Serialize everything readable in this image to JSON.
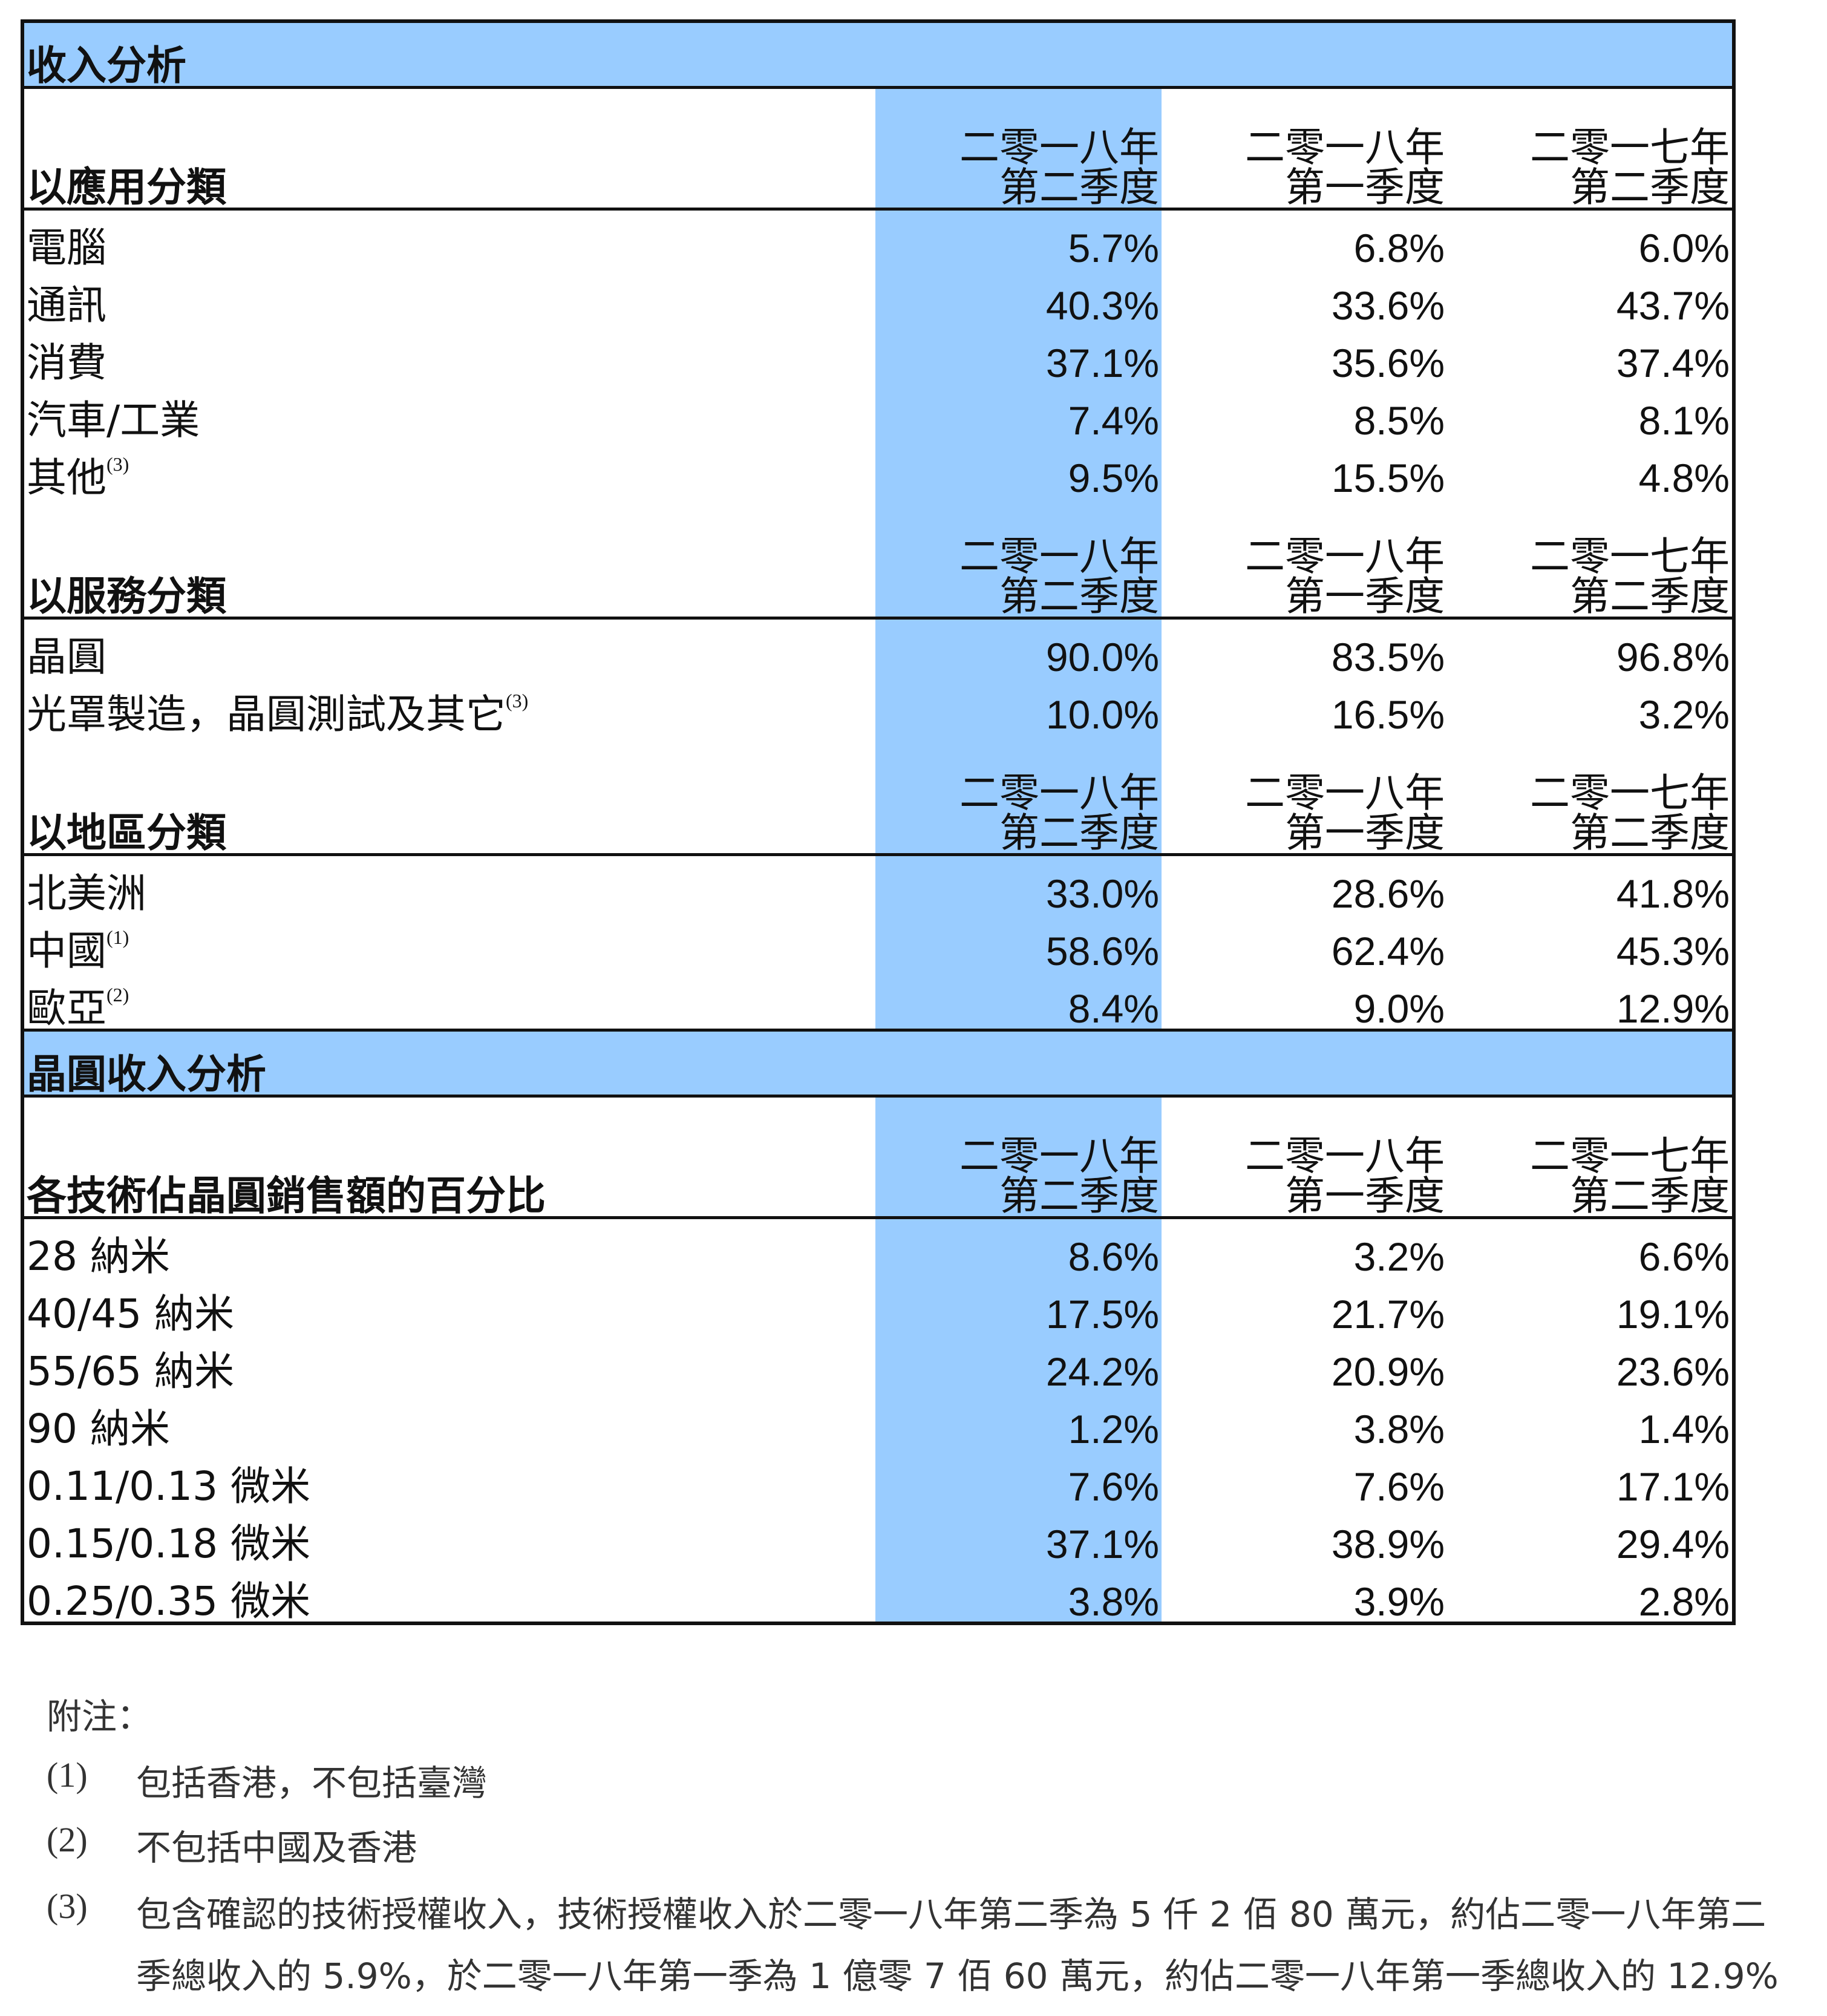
{
  "colors": {
    "highlight": "#99ccff",
    "border": "#111111"
  },
  "sections": [
    {
      "band": "收入分析",
      "header": {
        "label": "以應用分類",
        "cols": [
          [
            "二零一八年",
            "第二季度"
          ],
          [
            "二零一八年",
            "第一季度"
          ],
          [
            "二零一七年",
            "第二季度"
          ]
        ]
      },
      "rows": [
        {
          "label": "電腦",
          "note": "",
          "values": [
            "5.7%",
            "6.8%",
            "6.0%"
          ]
        },
        {
          "label": "通訊",
          "note": "",
          "values": [
            "40.3%",
            "33.6%",
            "43.7%"
          ]
        },
        {
          "label": "消費",
          "note": "",
          "values": [
            "37.1%",
            "35.6%",
            "37.4%"
          ]
        },
        {
          "label": "汽車/工業",
          "note": "",
          "values": [
            "7.4%",
            "8.5%",
            "8.1%"
          ]
        },
        {
          "label": "其他",
          "note": "(3)",
          "values": [
            "9.5%",
            "15.5%",
            "4.8%"
          ]
        }
      ]
    },
    {
      "band": "",
      "header": {
        "label": "以服務分類",
        "cols": [
          [
            "二零一八年",
            "第二季度"
          ],
          [
            "二零一八年",
            "第一季度"
          ],
          [
            "二零一七年",
            "第二季度"
          ]
        ]
      },
      "rows": [
        {
          "label": "晶圓",
          "note": "",
          "values": [
            "90.0%",
            "83.5%",
            "96.8%"
          ]
        },
        {
          "label": "光罩製造，晶圓測試及其它",
          "note": "(3)",
          "values": [
            "10.0%",
            "16.5%",
            "3.2%"
          ]
        }
      ]
    },
    {
      "band": "",
      "header": {
        "label": "以地區分類",
        "cols": [
          [
            "二零一八年",
            "第二季度"
          ],
          [
            "二零一八年",
            "第一季度"
          ],
          [
            "二零一七年",
            "第二季度"
          ]
        ]
      },
      "rows": [
        {
          "label": "北美洲",
          "note": "",
          "values": [
            "33.0%",
            "28.6%",
            "41.8%"
          ]
        },
        {
          "label": "中國",
          "note": "(1)",
          "values": [
            "58.6%",
            "62.4%",
            "45.3%"
          ]
        },
        {
          "label": "歐亞",
          "note": "(2)",
          "values": [
            "8.4%",
            "9.0%",
            "12.9%"
          ]
        }
      ]
    },
    {
      "band": "晶圓收入分析",
      "header": {
        "label": "各技術佔晶圓銷售額的百分比",
        "cols": [
          [
            "二零一八年",
            "第二季度"
          ],
          [
            "二零一八年",
            "第一季度"
          ],
          [
            "二零一七年",
            "第二季度"
          ]
        ]
      },
      "rows": [
        {
          "label": "28 納米",
          "note": "",
          "values": [
            "8.6%",
            "3.2%",
            "6.6%"
          ]
        },
        {
          "label": "40/45 納米",
          "note": "",
          "values": [
            "17.5%",
            "21.7%",
            "19.1%"
          ]
        },
        {
          "label": "55/65 納米",
          "note": "",
          "values": [
            "24.2%",
            "20.9%",
            "23.6%"
          ]
        },
        {
          "label": "90 納米",
          "note": "",
          "values": [
            "1.2%",
            "3.8%",
            "1.4%"
          ]
        },
        {
          "label": "0.11/0.13 微米",
          "note": "",
          "values": [
            "7.6%",
            "7.6%",
            "17.1%"
          ]
        },
        {
          "label": "0.15/0.18 微米",
          "note": "",
          "values": [
            "37.1%",
            "38.9%",
            "29.4%"
          ]
        },
        {
          "label": "0.25/0.35 微米",
          "note": "",
          "values": [
            "3.8%",
            "3.9%",
            "2.8%"
          ]
        }
      ]
    }
  ],
  "notes": {
    "title": "附注：",
    "items": [
      {
        "marker": "(1)",
        "lines": [
          "包括香港，不包括臺灣"
        ]
      },
      {
        "marker": "(2)",
        "lines": [
          "不包括中國及香港"
        ]
      },
      {
        "marker": "(3)",
        "lines": [
          "包含確認的技術授權收入，技術授權收入於二零一八年第二季為 5 仟 2 佰 80 萬元，約佔二零一八年第二",
          "季總收入的 5.9%，於二零一八年第一季為 1 億零 7 佰 60 萬元，約佔二零一八年第一季總收入的 12.9%"
        ]
      }
    ]
  }
}
